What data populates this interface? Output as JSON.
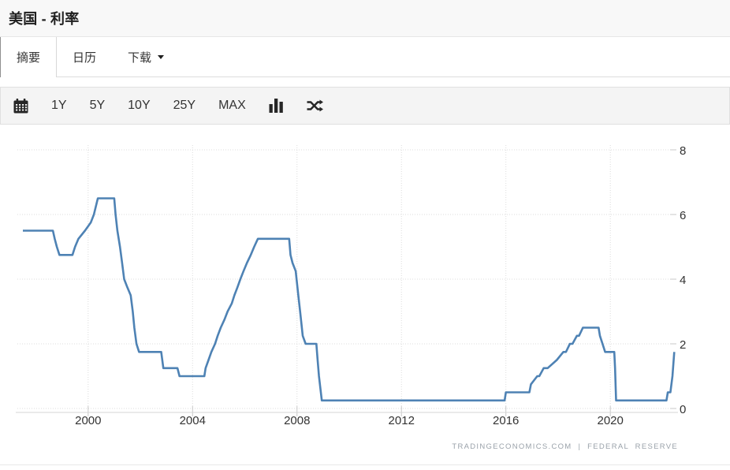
{
  "header": {
    "title": "美国 - 利率"
  },
  "tabs": [
    {
      "id": "summary",
      "label": "摘要",
      "active": true,
      "caret": false
    },
    {
      "id": "calendar",
      "label": "日历",
      "active": false,
      "caret": false
    },
    {
      "id": "download",
      "label": "下载",
      "active": false,
      "caret": true
    }
  ],
  "toolbar": {
    "calendar_icon": "calendar-icon",
    "ranges": [
      "1Y",
      "5Y",
      "10Y",
      "25Y",
      "MAX"
    ],
    "right_icons": [
      "bar-chart-icon",
      "shuffle-icon"
    ]
  },
  "chart_data": {
    "type": "line",
    "title": "美国 - 利率",
    "x_range": [
      1997.5,
      2022.5
    ],
    "y_range": [
      0,
      8
    ],
    "x_ticks": [
      2000,
      2004,
      2008,
      2012,
      2016,
      2020
    ],
    "y_ticks": [
      0,
      2,
      4,
      6,
      8
    ],
    "grid": "dotted",
    "axis_side": "right",
    "attribution": "TRADINGECONOMICS.COM | FEDERAL RESERVE",
    "colors": {
      "line": "#4e82b4",
      "grid": "#dcdcdc",
      "axis": "#d4d4d4",
      "tick": "#c9c9c9",
      "label": "#333333"
    },
    "series": [
      {
        "color": "#4e82b4",
        "points": [
          [
            1997.5,
            5.5
          ],
          [
            1998.65,
            5.5
          ],
          [
            1998.72,
            5.25
          ],
          [
            1998.8,
            5.0
          ],
          [
            1998.9,
            4.75
          ],
          [
            1999.4,
            4.75
          ],
          [
            1999.5,
            5.0
          ],
          [
            1999.63,
            5.25
          ],
          [
            1999.88,
            5.5
          ],
          [
            2000.1,
            5.75
          ],
          [
            2000.22,
            6.0
          ],
          [
            2000.37,
            6.5
          ],
          [
            2001.0,
            6.5
          ],
          [
            2001.05,
            6.0
          ],
          [
            2001.12,
            5.5
          ],
          [
            2001.22,
            5.0
          ],
          [
            2001.3,
            4.5
          ],
          [
            2001.38,
            4.0
          ],
          [
            2001.5,
            3.75
          ],
          [
            2001.63,
            3.5
          ],
          [
            2001.71,
            3.0
          ],
          [
            2001.77,
            2.5
          ],
          [
            2001.85,
            2.0
          ],
          [
            2001.95,
            1.75
          ],
          [
            2002.8,
            1.75
          ],
          [
            2002.88,
            1.25
          ],
          [
            2003.42,
            1.25
          ],
          [
            2003.5,
            1.0
          ],
          [
            2004.45,
            1.0
          ],
          [
            2004.5,
            1.25
          ],
          [
            2004.61,
            1.5
          ],
          [
            2004.72,
            1.75
          ],
          [
            2004.86,
            2.0
          ],
          [
            2004.96,
            2.25
          ],
          [
            2005.08,
            2.5
          ],
          [
            2005.22,
            2.75
          ],
          [
            2005.34,
            3.0
          ],
          [
            2005.5,
            3.25
          ],
          [
            2005.6,
            3.5
          ],
          [
            2005.72,
            3.75
          ],
          [
            2005.83,
            4.0
          ],
          [
            2005.95,
            4.25
          ],
          [
            2006.08,
            4.5
          ],
          [
            2006.23,
            4.75
          ],
          [
            2006.36,
            5.0
          ],
          [
            2006.5,
            5.25
          ],
          [
            2007.7,
            5.25
          ],
          [
            2007.75,
            4.75
          ],
          [
            2007.83,
            4.5
          ],
          [
            2007.95,
            4.25
          ],
          [
            2008.05,
            3.5
          ],
          [
            2008.12,
            3.0
          ],
          [
            2008.22,
            2.25
          ],
          [
            2008.33,
            2.0
          ],
          [
            2008.74,
            2.0
          ],
          [
            2008.79,
            1.5
          ],
          [
            2008.84,
            1.0
          ],
          [
            2008.95,
            0.25
          ],
          [
            2015.95,
            0.25
          ],
          [
            2016.0,
            0.5
          ],
          [
            2016.9,
            0.5
          ],
          [
            2016.96,
            0.75
          ],
          [
            2017.2,
            1.0
          ],
          [
            2017.28,
            1.0
          ],
          [
            2017.45,
            1.25
          ],
          [
            2017.6,
            1.25
          ],
          [
            2017.95,
            1.5
          ],
          [
            2018.2,
            1.75
          ],
          [
            2018.3,
            1.75
          ],
          [
            2018.45,
            2.0
          ],
          [
            2018.55,
            2.0
          ],
          [
            2018.72,
            2.25
          ],
          [
            2018.8,
            2.25
          ],
          [
            2018.95,
            2.5
          ],
          [
            2019.55,
            2.5
          ],
          [
            2019.6,
            2.25
          ],
          [
            2019.7,
            2.0
          ],
          [
            2019.8,
            1.75
          ],
          [
            2020.15,
            1.75
          ],
          [
            2020.18,
            1.25
          ],
          [
            2020.22,
            0.25
          ],
          [
            2022.15,
            0.25
          ],
          [
            2022.2,
            0.5
          ],
          [
            2022.3,
            0.5
          ],
          [
            2022.38,
            1.0
          ],
          [
            2022.45,
            1.75
          ]
        ]
      }
    ]
  }
}
